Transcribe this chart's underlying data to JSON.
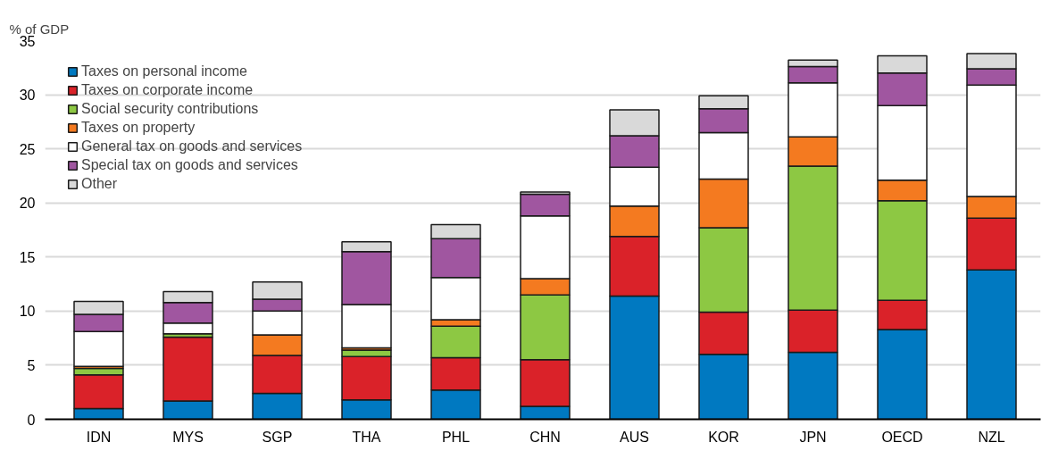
{
  "chart_data": {
    "type": "bar",
    "stacked": true,
    "ylabel": "% of GDP",
    "categories": [
      "IDN",
      "MYS",
      "SGP",
      "THA",
      "PHL",
      "CHN",
      "AUS",
      "KOR",
      "JPN",
      "OECD",
      "NZL"
    ],
    "ylim": [
      0,
      35
    ],
    "yticks": [
      0,
      5,
      10,
      15,
      20,
      25,
      30,
      35
    ],
    "grid": "y",
    "legend": "top left",
    "series": [
      {
        "name": "Taxes on personal income",
        "color": "#0079c1",
        "values": [
          1.0,
          1.7,
          2.4,
          1.8,
          2.7,
          1.2,
          11.4,
          6.0,
          6.2,
          8.3,
          13.8
        ]
      },
      {
        "name": "Taxes on corporate income",
        "color": "#da2229",
        "values": [
          3.1,
          5.9,
          3.5,
          4.0,
          3.0,
          4.3,
          5.5,
          3.9,
          3.9,
          2.7,
          4.8
        ]
      },
      {
        "name": "Social security contributions",
        "color": "#8dc843",
        "values": [
          0.6,
          0.3,
          null,
          0.6,
          2.9,
          6.0,
          null,
          7.8,
          13.3,
          9.2,
          null
        ]
      },
      {
        "name": "Taxes on property",
        "color": "#f47a20",
        "values": [
          0.2,
          null,
          1.9,
          0.2,
          0.6,
          1.5,
          2.8,
          4.5,
          2.7,
          1.9,
          2.0
        ]
      },
      {
        "name": "General tax on goods and services",
        "color": "#ffffff",
        "values": [
          3.2,
          1.0,
          2.2,
          4.0,
          3.9,
          5.8,
          3.6,
          4.3,
          5.0,
          6.9,
          10.3
        ]
      },
      {
        "name": "Special tax on goods and services",
        "color": "#a056a0",
        "values": [
          1.6,
          1.9,
          1.1,
          4.9,
          3.6,
          2.0,
          2.9,
          2.2,
          1.5,
          3.0,
          1.5
        ]
      },
      {
        "name": "Other",
        "color": "#d9d9d9",
        "values": [
          1.2,
          1.0,
          1.6,
          0.9,
          1.3,
          0.2,
          2.4,
          1.2,
          0.6,
          1.6,
          1.4
        ]
      }
    ]
  }
}
